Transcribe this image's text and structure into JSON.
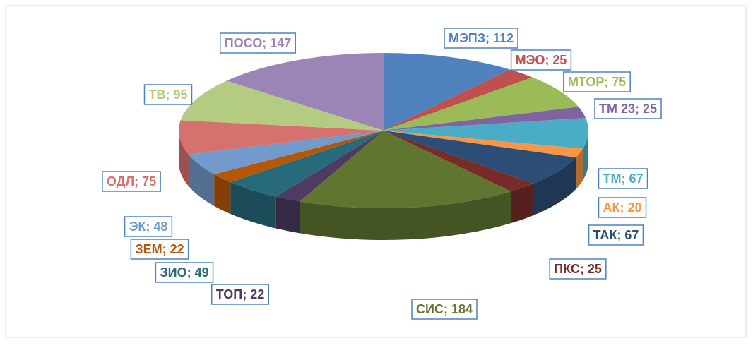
{
  "chart_data": {
    "type": "pie",
    "values": [
      112,
      25,
      75,
      25,
      67,
      20,
      67,
      25,
      184,
      22,
      49,
      22,
      48,
      75,
      95,
      147
    ],
    "value_labels": [
      "МЭПЗ; 112",
      "МЭО; 25",
      "МТОР; 75",
      "ТМ 23; 25",
      "ТМ; 67",
      "АК; 20",
      "ТАК; 67",
      "ПКС; 25",
      "СИС; 184",
      "ТОП; 22",
      "ЗИО; 49",
      "ЗЕМ; 22",
      "ЭК; 48",
      "ОДЛ; 75",
      "ТВ; 95",
      "ПОСО; 147"
    ],
    "colors": [
      "#4f81bd",
      "#c0504d",
      "#9bbb59",
      "#8064a2",
      "#4bacc6",
      "#f79646",
      "#2c4d75",
      "#772c2a",
      "#5f7530",
      "#4d3b62",
      "#276a7c",
      "#b65708",
      "#729aca",
      "#d5726f",
      "#b3cc82",
      "#9b85b6"
    ]
  }
}
